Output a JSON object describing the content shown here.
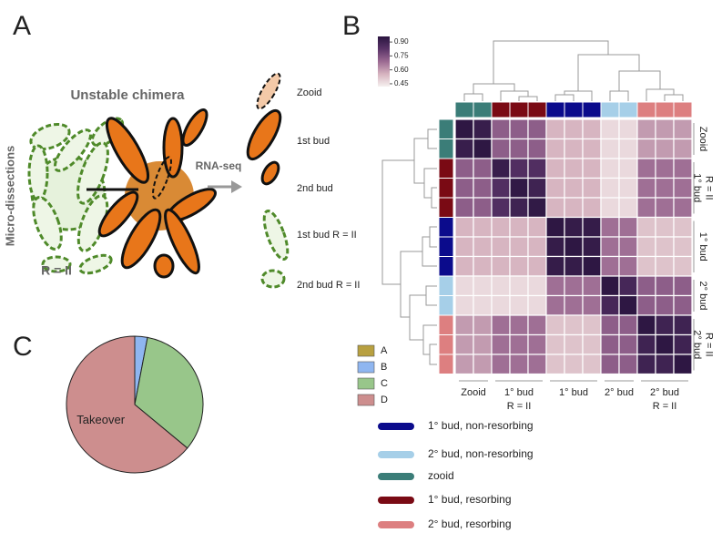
{
  "panels": [
    "A",
    "B",
    "C"
  ],
  "diagram": {
    "title": "Unstable chimera",
    "side_label": "Micro-dissections",
    "chimera_label": "R = II",
    "arrow_label": "RNA-seq",
    "samples": [
      "Zooid",
      "1st bud",
      "2nd bud",
      "1st bud R = II",
      "2nd bud R = II"
    ]
  },
  "chart_data": [
    {
      "type": "heatmap",
      "z": [
        [
          0.95,
          0.92,
          0.72,
          0.72,
          0.72,
          0.55,
          0.55,
          0.55,
          0.47,
          0.47,
          0.6,
          0.6,
          0.6
        ],
        [
          0.92,
          0.95,
          0.72,
          0.72,
          0.72,
          0.55,
          0.55,
          0.55,
          0.47,
          0.47,
          0.6,
          0.6,
          0.6
        ],
        [
          0.72,
          0.72,
          0.92,
          0.85,
          0.85,
          0.55,
          0.55,
          0.55,
          0.47,
          0.47,
          0.68,
          0.68,
          0.68
        ],
        [
          0.72,
          0.72,
          0.85,
          0.94,
          0.9,
          0.55,
          0.55,
          0.55,
          0.47,
          0.47,
          0.68,
          0.68,
          0.68
        ],
        [
          0.72,
          0.72,
          0.85,
          0.9,
          0.94,
          0.55,
          0.55,
          0.55,
          0.47,
          0.47,
          0.68,
          0.68,
          0.68
        ],
        [
          0.55,
          0.55,
          0.55,
          0.55,
          0.55,
          0.95,
          0.93,
          0.93,
          0.68,
          0.68,
          0.52,
          0.52,
          0.52
        ],
        [
          0.55,
          0.55,
          0.55,
          0.55,
          0.55,
          0.93,
          0.95,
          0.93,
          0.68,
          0.68,
          0.52,
          0.52,
          0.52
        ],
        [
          0.55,
          0.55,
          0.55,
          0.55,
          0.55,
          0.93,
          0.93,
          0.95,
          0.68,
          0.68,
          0.52,
          0.52,
          0.52
        ],
        [
          0.47,
          0.47,
          0.47,
          0.47,
          0.47,
          0.68,
          0.68,
          0.68,
          0.95,
          0.88,
          0.72,
          0.72,
          0.72
        ],
        [
          0.47,
          0.47,
          0.47,
          0.47,
          0.47,
          0.68,
          0.68,
          0.68,
          0.88,
          0.95,
          0.72,
          0.72,
          0.72
        ],
        [
          0.6,
          0.6,
          0.68,
          0.68,
          0.68,
          0.52,
          0.52,
          0.52,
          0.72,
          0.72,
          0.95,
          0.9,
          0.9
        ],
        [
          0.6,
          0.6,
          0.68,
          0.68,
          0.68,
          0.52,
          0.52,
          0.52,
          0.72,
          0.72,
          0.9,
          0.95,
          0.9
        ],
        [
          0.6,
          0.6,
          0.68,
          0.68,
          0.68,
          0.52,
          0.52,
          0.52,
          0.72,
          0.72,
          0.9,
          0.9,
          0.95
        ]
      ],
      "zlim": [
        0.42,
        0.96
      ],
      "colorbar_ticks": [
        0.45,
        {
          "value": 0.6,
          "label": "0.60"
        },
        0.75,
        {
          "value": 0.9,
          "label": "0.90"
        }
      ],
      "colorscale": [
        "#f6f0ef",
        "#d6b3bf",
        "#9b6a92",
        "#5a3468",
        "#2a1540"
      ],
      "col_colors": [
        "#3b7d78",
        "#3b7d78",
        "#7a0a14",
        "#7a0a14",
        "#7a0a14",
        "#0b0b8c",
        "#0b0b8c",
        "#0b0b8c",
        "#a6cfe8",
        "#a6cfe8",
        "#dd7f80",
        "#dd7f80",
        "#dd7f80"
      ],
      "row_colors": [
        "#3b7d78",
        "#3b7d78",
        "#7a0a14",
        "#7a0a14",
        "#7a0a14",
        "#0b0b8c",
        "#0b0b8c",
        "#0b0b8c",
        "#a6cfe8",
        "#a6cfe8",
        "#dd7f80",
        "#dd7f80",
        "#dd7f80"
      ],
      "x_labels": [
        [
          "Zooid"
        ],
        [
          "1° bud",
          "R = II"
        ],
        [
          "1° bud"
        ],
        [
          "2° bud"
        ],
        [
          "2° bud",
          "R = II"
        ]
      ],
      "y_labels": [
        [
          "Zooid"
        ],
        [
          "1° bud",
          "R = II"
        ],
        [
          "1° bud"
        ],
        [
          "2° bud"
        ],
        [
          "2° bud",
          "R = II"
        ]
      ],
      "legend": [
        {
          "name": "1° bud, non-resorbing",
          "color": "#0b0b8c"
        },
        {
          "name": "2° bud, non-resorbing",
          "color": "#a6cfe8"
        },
        {
          "name": "zooid",
          "color": "#3b7d78"
        },
        {
          "name": "1° bud, resorbing",
          "color": "#7a0a14"
        },
        {
          "name": "2° bud, resorbing",
          "color": "#dd7f80"
        }
      ]
    },
    {
      "type": "pie",
      "categories": [
        "A",
        "B",
        "C",
        "D"
      ],
      "values": [
        0,
        3,
        33,
        64
      ],
      "colors": [
        "#b8a040",
        "#8fb6f0",
        "#98c68a",
        "#cd8e8e"
      ],
      "annotation": {
        "label": "Takeover",
        "category": 3
      }
    }
  ]
}
